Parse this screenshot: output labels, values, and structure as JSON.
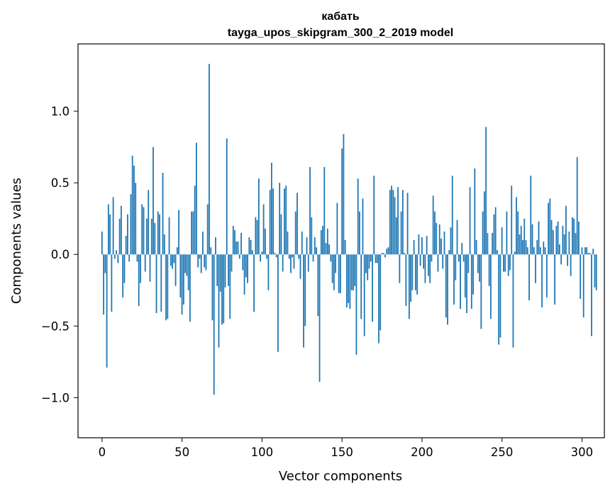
{
  "chart_data": {
    "type": "bar",
    "title": "кабать",
    "subtitle": "tayga_upos_skipgram_300_2_2019 model",
    "xlabel": "Vector components",
    "ylabel": "Components values",
    "xlim": [
      -15,
      314
    ],
    "ylim": [
      -1.28,
      1.47
    ],
    "x_ticks": [
      0,
      50,
      100,
      150,
      200,
      250,
      300
    ],
    "x_tick_labels": [
      "0",
      "50",
      "100",
      "150",
      "200",
      "250",
      "300"
    ],
    "y_ticks": [
      -1.0,
      -0.5,
      0.0,
      0.5,
      1.0
    ],
    "y_tick_labels": [
      "−1.0",
      "−0.5",
      "0.0",
      "0.5",
      "1.0"
    ],
    "bar_color": "#1f77b4",
    "values": [
      0.16,
      -0.42,
      -0.13,
      -0.79,
      0.35,
      0.28,
      -0.4,
      0.4,
      -0.03,
      0.03,
      -0.06,
      0.25,
      0.34,
      -0.3,
      -0.2,
      0.13,
      0.28,
      -0.05,
      0.42,
      0.69,
      0.62,
      0.5,
      -0.05,
      -0.36,
      -0.2,
      0.35,
      0.33,
      -0.12,
      0.25,
      0.45,
      -0.19,
      0.25,
      0.75,
      0.22,
      -0.41,
      0.3,
      0.28,
      -0.4,
      0.57,
      0.14,
      -0.46,
      -0.45,
      0.26,
      -0.08,
      -0.1,
      -0.06,
      -0.22,
      0.05,
      0.31,
      -0.3,
      -0.42,
      -0.35,
      -0.13,
      -0.15,
      -0.25,
      -0.47,
      0.3,
      0.3,
      0.48,
      0.78,
      -0.09,
      -0.03,
      -0.13,
      0.16,
      -0.09,
      -0.11,
      0.35,
      1.33,
      0.05,
      -0.46,
      -0.98,
      0.12,
      -0.22,
      -0.65,
      -0.26,
      -0.49,
      -0.48,
      -0.23,
      0.81,
      -0.22,
      -0.45,
      -0.12,
      0.2,
      0.17,
      0.09,
      0.09,
      -0.03,
      0.15,
      -0.11,
      -0.28,
      -0.16,
      -0.2,
      0.12,
      0.1,
      0.03,
      -0.4,
      0.26,
      0.24,
      0.53,
      -0.05,
      0.02,
      0.35,
      0.18,
      -0.03,
      -0.25,
      0.45,
      0.64,
      0.46,
      0.01,
      -0.02,
      -0.68,
      0.5,
      0.28,
      -0.12,
      0.46,
      0.48,
      0.16,
      -0.03,
      -0.13,
      -0.02,
      -0.1,
      0.3,
      0.43,
      -0.03,
      -0.17,
      0.16,
      -0.65,
      -0.5,
      0.12,
      -0.12,
      0.61,
      0.26,
      -0.05,
      0.12,
      0.05,
      -0.43,
      -0.89,
      0.17,
      0.2,
      0.61,
      0.08,
      0.18,
      0.07,
      -0.05,
      -0.2,
      -0.25,
      -0.13,
      0.36,
      -0.27,
      -0.27,
      0.74,
      0.84,
      0.1,
      -0.37,
      -0.34,
      -0.38,
      -0.25,
      -0.25,
      -0.22,
      -0.7,
      0.53,
      0.3,
      -0.45,
      0.39,
      -0.57,
      -0.13,
      -0.18,
      -0.1,
      -0.05,
      -0.47,
      0.55,
      -0.06,
      -0.06,
      -0.62,
      -0.53,
      0.01,
      0.01,
      -0.02,
      0.04,
      0.05,
      0.45,
      0.48,
      0.45,
      0.4,
      0.26,
      0.47,
      -0.2,
      0.3,
      0.45,
      0.01,
      -0.36,
      0.43,
      -0.45,
      -0.33,
      -0.25,
      0.1,
      -0.25,
      -0.28,
      0.14,
      -0.08,
      0.12,
      -0.1,
      -0.2,
      0.13,
      -0.15,
      -0.2,
      -0.05,
      0.41,
      0.3,
      0.22,
      -0.12,
      0.21,
      0.11,
      -0.1,
      0.16,
      -0.44,
      -0.49,
      0.03,
      0.19,
      0.55,
      -0.35,
      -0.18,
      0.24,
      -0.05,
      -0.38,
      0.08,
      -0.05,
      -0.3,
      -0.41,
      -0.13,
      0.47,
      -0.38,
      -0.28,
      0.6,
      0.1,
      -0.13,
      -0.19,
      -0.52,
      0.3,
      0.44,
      0.89,
      0.15,
      -0.22,
      -0.45,
      0.15,
      0.28,
      0.33,
      0.03,
      -0.63,
      -0.58,
      0.19,
      -0.12,
      -0.12,
      0.3,
      -0.15,
      -0.11,
      0.48,
      -0.65,
      0.02,
      0.4,
      0.3,
      0.14,
      0.2,
      0.1,
      0.25,
      0.1,
      0.05,
      -0.32,
      0.55,
      0.21,
      0.05,
      -0.2,
      0.1,
      0.23,
      0.05,
      -0.37,
      0.09,
      0.05,
      -0.3,
      0.36,
      0.39,
      0.24,
      0.17,
      -0.35,
      0.2,
      0.23,
      0.07,
      -0.07,
      0.2,
      0.14,
      0.34,
      -0.08,
      0.16,
      -0.15,
      0.26,
      0.25,
      0.15,
      0.68,
      0.23,
      -0.31,
      0.05,
      -0.44,
      0.05,
      0.05,
      0.01,
      0.01,
      -0.57,
      0.04,
      -0.23,
      -0.25
    ]
  }
}
